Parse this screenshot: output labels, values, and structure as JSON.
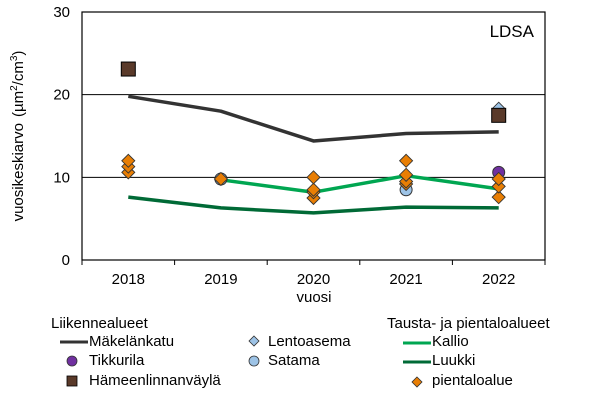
{
  "chart_data": {
    "type": "line",
    "title": "LDSA",
    "xlabel": "vuosi",
    "ylabel": "vuosikeskiarvo  (µm²/cm³)",
    "ylabel_main": "vuosikeskiarvo",
    "ylabel_unit_prefix": "(µm",
    "ylabel_unit_mid": "/cm",
    "ylabel_unit_suffix": ")",
    "ylabel_sup": "2",
    "ylabel_sup2": "3",
    "ylim": [
      0,
      30
    ],
    "yticks": [
      "0",
      "10",
      "20",
      "30"
    ],
    "grid": "horizontal",
    "categories": [
      "2018",
      "2019",
      "2020",
      "2021",
      "2022"
    ],
    "series": [
      {
        "name": "Mäkelänkatu",
        "group": "Liikennealueet",
        "kind": "line",
        "color": "#333333",
        "values": [
          19.8,
          18.0,
          14.4,
          15.3,
          15.5
        ]
      },
      {
        "name": "Tikkurila",
        "group": "Liikennealueet",
        "kind": "circle",
        "color": "#7030A0",
        "values": [
          null,
          null,
          null,
          null,
          10.6
        ]
      },
      {
        "name": "Hämeenlinnanväylä",
        "group": "Liikennealueet",
        "kind": "square",
        "color": "#5A3A2A",
        "values": [
          23.1,
          null,
          null,
          null,
          17.5
        ]
      },
      {
        "name": "Lentoasema",
        "group": "Liikennealueet",
        "kind": "diamond",
        "color": "#9DC3E6",
        "values": [
          null,
          null,
          null,
          null,
          18.3
        ]
      },
      {
        "name": "Satama",
        "group": "Liikennealueet",
        "kind": "circle",
        "color": "#9DC3E6",
        "values": [
          null,
          9.8,
          null,
          8.5,
          null
        ]
      },
      {
        "name": "Kallio",
        "group": "Tausta- ja pientaloalueet",
        "kind": "line",
        "color": "#00A651",
        "values": [
          null,
          9.7,
          8.2,
          10.2,
          8.6
        ]
      },
      {
        "name": "Luukki",
        "group": "Tausta- ja pientaloalueet",
        "kind": "line",
        "color": "#006A36",
        "values": [
          7.6,
          6.3,
          5.7,
          6.4,
          6.3
        ]
      },
      {
        "name": "pientaloalue",
        "group": "Tausta- ja pientaloalueet",
        "kind": "diamond",
        "color": "#E87E04",
        "points": [
          [
            12.0,
            11.3,
            10.6
          ],
          [
            9.8
          ],
          [
            10.0,
            8.5,
            8.2,
            7.5
          ],
          [
            12.0,
            10.3,
            9.5,
            9.2
          ],
          [
            9.8,
            8.9,
            7.6
          ]
        ]
      }
    ],
    "legend": {
      "placement": "bottom",
      "group1_title": "Liikennealueet",
      "group2_title": "Tausta- ja pientaloalueet",
      "items": {
        "makelankatu": "Mäkelänkatu",
        "tikkurila": "Tikkurila",
        "hameenlinnanvayla": "Hämeenlinnanväylä",
        "lentoasema": "Lentoasema",
        "satama": "Satama",
        "kallio": "Kallio",
        "luukki": "Luukki",
        "pientaloalue": "pientaloalue"
      }
    }
  }
}
